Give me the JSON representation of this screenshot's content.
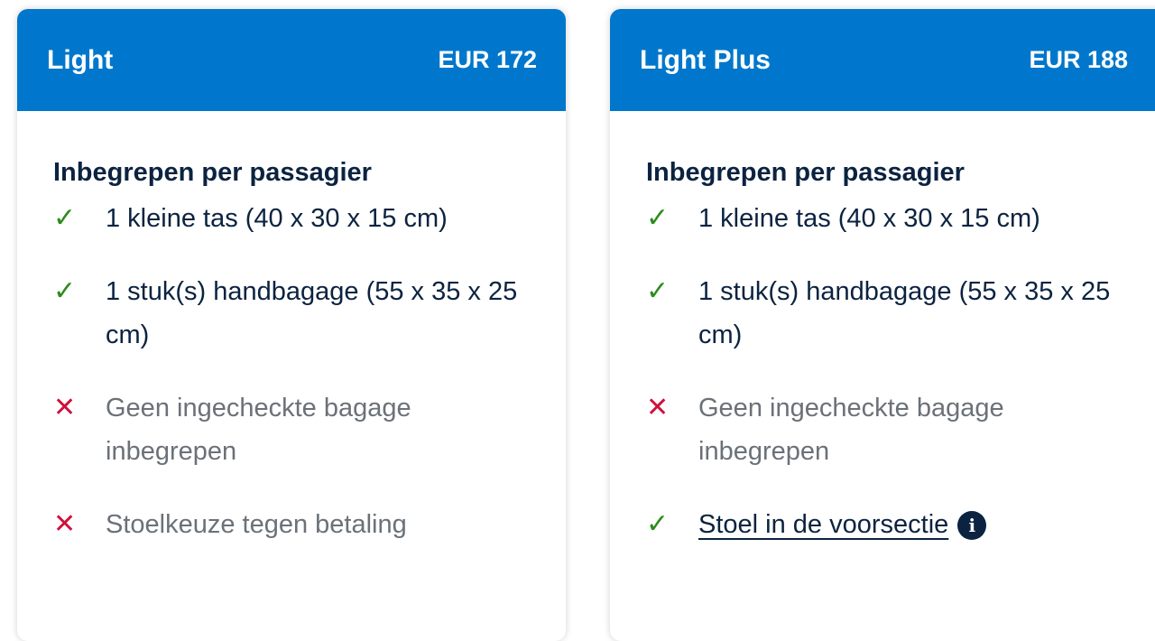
{
  "fares": [
    {
      "name": "Light",
      "price": "EUR 172",
      "heading": "Inbegrepen per passagier",
      "items": [
        {
          "icon": "check-icon",
          "text": "1 kleine tas (40 x 30 x 15 cm)"
        },
        {
          "icon": "check-icon",
          "text": "1 stuk(s) handbagage (55 x 35 x 25 cm)"
        },
        {
          "icon": "cross-icon",
          "text": "Geen ingecheckte bagage inbegrepen"
        },
        {
          "icon": "cross-icon",
          "text": "Stoelkeuze tegen betaling"
        }
      ]
    },
    {
      "name": "Light Plus",
      "price": "EUR 188",
      "heading": "Inbegrepen per passagier",
      "items": [
        {
          "icon": "check-icon",
          "text": "1 kleine tas (40 x 30 x 15 cm)"
        },
        {
          "icon": "check-icon",
          "text": "1 stuk(s) handbagage (55 x 35 x 25 cm)"
        },
        {
          "icon": "cross-icon",
          "text": "Geen ingecheckte bagage inbegrepen"
        },
        {
          "icon": "check-icon",
          "text": "Stoel in de voorsectie",
          "info": "i"
        }
      ]
    }
  ],
  "colors": {
    "header": "#0077cc",
    "check": "#2e8b1e",
    "cross": "#d0103a",
    "text": "#0b2340",
    "muted": "#6b7178"
  }
}
